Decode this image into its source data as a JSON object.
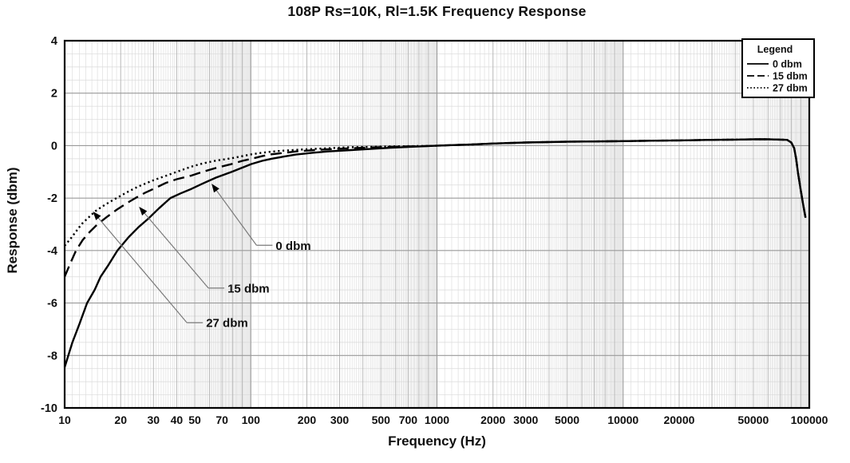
{
  "chart_data": {
    "type": "line",
    "title": "108P Rs=10K, Rl=1.5K Frequency Response",
    "xlabel": "Frequency (Hz)",
    "ylabel": "Response (dbm)",
    "x_scale": "log",
    "xlim": [
      10,
      100000
    ],
    "ylim": [
      -10,
      4
    ],
    "y_major_step": 2,
    "y_minor_step": 0.5,
    "grid": true,
    "x_ticks": [
      10,
      20,
      30,
      40,
      50,
      70,
      100,
      200,
      300,
      500,
      700,
      1000,
      2000,
      3000,
      5000,
      10000,
      20000,
      50000,
      100000
    ],
    "y_ticks": [
      4,
      2,
      0,
      -2,
      -4,
      -6,
      -8,
      -10
    ],
    "legend": {
      "title": "Legend",
      "position": "top-right",
      "entries": [
        {
          "label": "0 dbm",
          "style": "solid"
        },
        {
          "label": "15 dbm",
          "style": "dashed"
        },
        {
          "label": "27 dbm",
          "style": "dotted"
        }
      ]
    },
    "series": [
      {
        "name": "0 dbm",
        "style": "solid",
        "points": [
          [
            10,
            -8.45
          ],
          [
            11,
            -7.5
          ],
          [
            12,
            -6.8
          ],
          [
            13.2,
            -6.0
          ],
          [
            14.5,
            -5.5
          ],
          [
            15.6,
            -5.0
          ],
          [
            17,
            -4.6
          ],
          [
            19.2,
            -4.0
          ],
          [
            22,
            -3.5
          ],
          [
            25,
            -3.1
          ],
          [
            28,
            -2.8
          ],
          [
            32,
            -2.4
          ],
          [
            37,
            -2.0
          ],
          [
            42,
            -1.82
          ],
          [
            48,
            -1.65
          ],
          [
            55,
            -1.45
          ],
          [
            65,
            -1.22
          ],
          [
            79,
            -1.0
          ],
          [
            90,
            -0.84
          ],
          [
            101,
            -0.7
          ],
          [
            115,
            -0.58
          ],
          [
            129,
            -0.5
          ],
          [
            150,
            -0.42
          ],
          [
            175,
            -0.34
          ],
          [
            211,
            -0.28
          ],
          [
            260,
            -0.22
          ],
          [
            345,
            -0.17
          ],
          [
            430,
            -0.13
          ],
          [
            565,
            -0.08
          ],
          [
            700,
            -0.05
          ],
          [
            925,
            -0.01
          ],
          [
            1200,
            0.02
          ],
          [
            1500,
            0.04
          ],
          [
            2000,
            0.08
          ],
          [
            3000,
            0.12
          ],
          [
            5000,
            0.15
          ],
          [
            7000,
            0.16
          ],
          [
            10000,
            0.17
          ],
          [
            15000,
            0.19
          ],
          [
            20000,
            0.2
          ],
          [
            30000,
            0.22
          ],
          [
            40000,
            0.23
          ],
          [
            50000,
            0.24
          ],
          [
            60000,
            0.24
          ],
          [
            70000,
            0.23
          ],
          [
            76000,
            0.22
          ],
          [
            80000,
            0.12
          ],
          [
            83000,
            -0.1
          ],
          [
            85000,
            -0.5
          ],
          [
            87000,
            -1.05
          ],
          [
            90000,
            -1.7
          ],
          [
            93000,
            -2.3
          ],
          [
            95500,
            -2.75
          ]
        ]
      },
      {
        "name": "15 dbm",
        "style": "dashed",
        "points": [
          [
            10,
            -5.0
          ],
          [
            10.7,
            -4.5
          ],
          [
            11.5,
            -4.0
          ],
          [
            12.5,
            -3.6
          ],
          [
            13.6,
            -3.3
          ],
          [
            15,
            -3.0
          ],
          [
            17,
            -2.7
          ],
          [
            19,
            -2.45
          ],
          [
            21.5,
            -2.2
          ],
          [
            24,
            -2.0
          ],
          [
            27,
            -1.8
          ],
          [
            30,
            -1.65
          ],
          [
            35,
            -1.42
          ],
          [
            40,
            -1.28
          ],
          [
            48,
            -1.14
          ],
          [
            55,
            -1.0
          ],
          [
            65,
            -0.85
          ],
          [
            79,
            -0.7
          ],
          [
            90,
            -0.58
          ],
          [
            101,
            -0.5
          ],
          [
            115,
            -0.4
          ],
          [
            129,
            -0.33
          ],
          [
            150,
            -0.28
          ],
          [
            175,
            -0.22
          ],
          [
            211,
            -0.18
          ],
          [
            260,
            -0.14
          ],
          [
            345,
            -0.1
          ],
          [
            430,
            -0.07
          ],
          [
            565,
            -0.05
          ],
          [
            700,
            -0.03
          ],
          [
            925,
            -0.01
          ],
          [
            1200,
            0.02
          ],
          [
            1500,
            0.04
          ],
          [
            2000,
            0.08
          ],
          [
            3000,
            0.12
          ],
          [
            5000,
            0.15
          ],
          [
            7000,
            0.16
          ],
          [
            10000,
            0.17
          ],
          [
            15000,
            0.19
          ],
          [
            20000,
            0.2
          ],
          [
            30000,
            0.22
          ],
          [
            40000,
            0.23
          ],
          [
            50000,
            0.24
          ],
          [
            60000,
            0.24
          ],
          [
            70000,
            0.23
          ],
          [
            76000,
            0.22
          ],
          [
            80000,
            0.12
          ],
          [
            83000,
            -0.1
          ],
          [
            85000,
            -0.5
          ],
          [
            87000,
            -1.05
          ],
          [
            90000,
            -1.7
          ],
          [
            93000,
            -2.3
          ],
          [
            95500,
            -2.75
          ]
        ]
      },
      {
        "name": "27 dbm",
        "style": "dotted",
        "points": [
          [
            10,
            -3.82
          ],
          [
            10.9,
            -3.5
          ],
          [
            12.3,
            -3.0
          ],
          [
            14.6,
            -2.5
          ],
          [
            16.5,
            -2.25
          ],
          [
            19,
            -2.0
          ],
          [
            22,
            -1.75
          ],
          [
            25,
            -1.55
          ],
          [
            30,
            -1.32
          ],
          [
            35,
            -1.15
          ],
          [
            40,
            -1.0
          ],
          [
            48,
            -0.8
          ],
          [
            55,
            -0.68
          ],
          [
            65,
            -0.57
          ],
          [
            79,
            -0.48
          ],
          [
            90,
            -0.4
          ],
          [
            101,
            -0.33
          ],
          [
            115,
            -0.27
          ],
          [
            129,
            -0.23
          ],
          [
            150,
            -0.19
          ],
          [
            175,
            -0.16
          ],
          [
            211,
            -0.13
          ],
          [
            260,
            -0.1
          ],
          [
            345,
            -0.06
          ],
          [
            430,
            -0.05
          ],
          [
            565,
            -0.03
          ],
          [
            700,
            -0.02
          ],
          [
            925,
            -0.01
          ],
          [
            1200,
            0.02
          ],
          [
            1500,
            0.04
          ],
          [
            2000,
            0.08
          ],
          [
            3000,
            0.12
          ],
          [
            5000,
            0.15
          ],
          [
            7000,
            0.16
          ],
          [
            10000,
            0.17
          ],
          [
            15000,
            0.19
          ],
          [
            20000,
            0.2
          ],
          [
            30000,
            0.22
          ],
          [
            40000,
            0.23
          ],
          [
            50000,
            0.24
          ],
          [
            60000,
            0.24
          ],
          [
            70000,
            0.23
          ],
          [
            76000,
            0.22
          ],
          [
            80000,
            0.12
          ],
          [
            83000,
            -0.1
          ],
          [
            85000,
            -0.5
          ],
          [
            87000,
            -1.05
          ],
          [
            90000,
            -1.7
          ],
          [
            93000,
            -2.3
          ],
          [
            95500,
            -2.75
          ]
        ]
      }
    ],
    "annotations": [
      {
        "label": "0 dbm",
        "text_f": 136,
        "text_db": -3.8,
        "tip_f": 62,
        "tip_db": -1.48
      },
      {
        "label": "15 dbm",
        "text_f": 75,
        "text_db": -5.43,
        "tip_f": 25.3,
        "tip_db": -2.36
      },
      {
        "label": "27 dbm",
        "text_f": 57.5,
        "text_db": -6.75,
        "tip_f": 14.3,
        "tip_db": -2.54
      }
    ]
  },
  "colors": {
    "curve": "#000000",
    "grid_fine": "#d9d9d9",
    "grid_medium": "#b8b8b8",
    "grid_major": "#9a9a9a",
    "axis": "#000000",
    "connector": "#7a7a7a",
    "background": "#ffffff"
  }
}
